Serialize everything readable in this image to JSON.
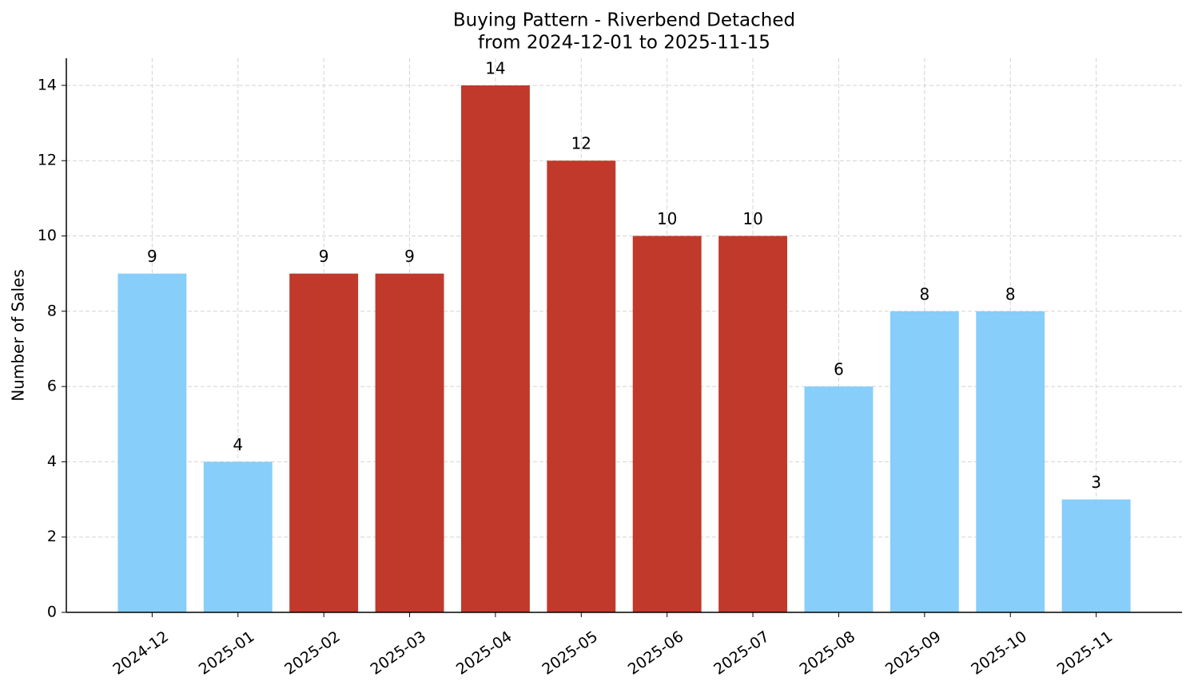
{
  "chart_data": {
    "type": "bar",
    "title": "Buying Pattern - Riverbend Detached",
    "subtitle": "from 2024-12-01 to 2025-11-15",
    "y_label": "Number of Sales",
    "categories": [
      "2024-12",
      "2025-01",
      "2025-02",
      "2025-03",
      "2025-04",
      "2025-05",
      "2025-06",
      "2025-07",
      "2025-08",
      "2025-09",
      "2025-10",
      "2025-11"
    ],
    "values": [
      9,
      4,
      9,
      9,
      14,
      12,
      10,
      10,
      6,
      8,
      8,
      3
    ],
    "colors": [
      "#87cefa",
      "#87cefa",
      "#c0392b",
      "#c0392b",
      "#c0392b",
      "#c0392b",
      "#c0392b",
      "#c0392b",
      "#87cefa",
      "#87cefa",
      "#87cefa",
      "#87cefa"
    ],
    "ylim": [
      0,
      14.72
    ],
    "yticks": [
      0,
      2,
      4,
      6,
      8,
      10,
      12,
      14
    ],
    "grid": true
  }
}
